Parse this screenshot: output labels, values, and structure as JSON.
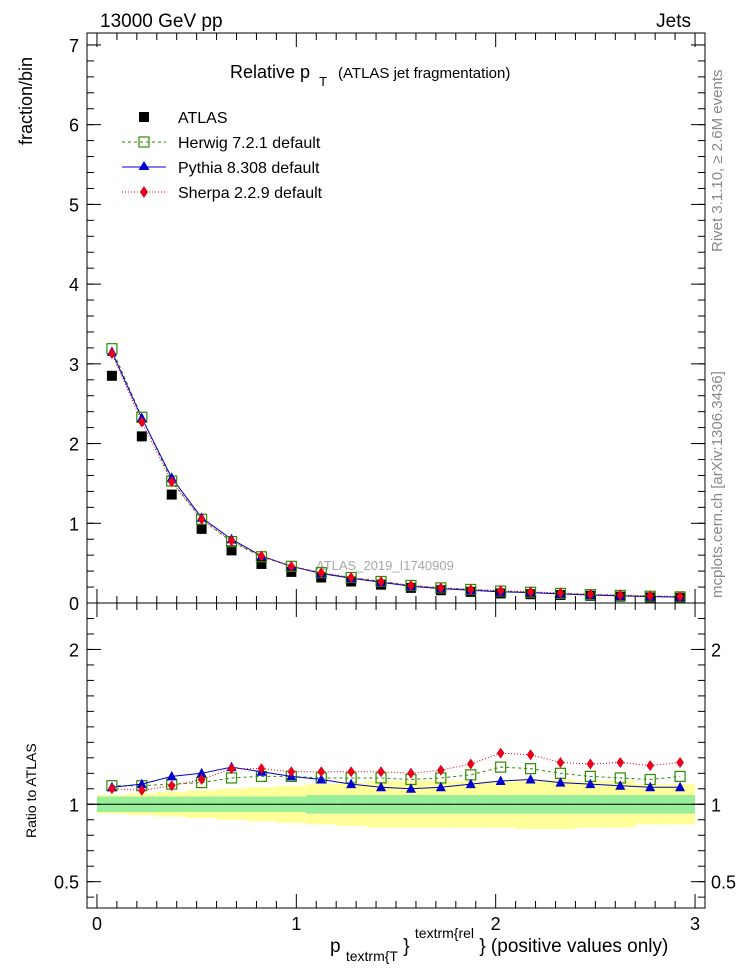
{
  "header": {
    "left": "13000 GeV pp",
    "right": "Jets"
  },
  "side_labels": {
    "rivet": "Rivet 3.1.10, ≥ 2.6M events",
    "mcplots": "mcplots.cern.ch [arXiv:1306.3436]"
  },
  "watermark": "ATLAS_2019_I1740909",
  "chart_data": [
    {
      "type": "scatter",
      "title_main": "Relative p",
      "title_sub": "T",
      "title_rest": "(ATLAS jet fragmentation)",
      "ylabel": "fraction/bin",
      "xlim": [
        -0.05,
        3.05
      ],
      "ylim": [
        0,
        7.15
      ],
      "yticks": [
        0,
        1,
        2,
        3,
        4,
        5,
        6,
        7
      ],
      "legend_position": "top-left",
      "x": [
        0.075,
        0.225,
        0.375,
        0.525,
        0.675,
        0.825,
        0.975,
        1.125,
        1.275,
        1.425,
        1.575,
        1.725,
        1.875,
        2.025,
        2.175,
        2.325,
        2.475,
        2.625,
        2.775,
        2.925
      ],
      "series": [
        {
          "name": "ATLAS",
          "color": "#000000",
          "marker": "square",
          "values": [
            2.85,
            2.09,
            1.36,
            0.93,
            0.66,
            0.49,
            0.39,
            0.32,
            0.27,
            0.23,
            0.19,
            0.16,
            0.14,
            0.12,
            0.11,
            0.1,
            0.09,
            0.08,
            0.07,
            0.065
          ]
        },
        {
          "name": "Herwig 7.2.1 default",
          "color": "#2e8b00",
          "marker": "open-square",
          "dash": "3,3",
          "values": [
            3.19,
            2.33,
            1.53,
            1.05,
            0.77,
            0.58,
            0.46,
            0.38,
            0.32,
            0.27,
            0.22,
            0.19,
            0.17,
            0.15,
            0.135,
            0.12,
            0.105,
            0.095,
            0.085,
            0.077
          ]
        },
        {
          "name": "Pythia 8.308 default",
          "color": "#0000cc",
          "marker": "triangle",
          "dash": "",
          "values": [
            3.15,
            2.32,
            1.57,
            1.07,
            0.8,
            0.59,
            0.46,
            0.37,
            0.31,
            0.26,
            0.21,
            0.18,
            0.16,
            0.14,
            0.13,
            0.115,
            0.1,
            0.09,
            0.08,
            0.073
          ]
        },
        {
          "name": "Sherpa 2.2.9 default",
          "color": "#e8001a",
          "marker": "diamond",
          "dash": "1,2",
          "values": [
            3.13,
            2.27,
            1.52,
            1.05,
            0.78,
            0.59,
            0.46,
            0.38,
            0.32,
            0.27,
            0.22,
            0.19,
            0.17,
            0.155,
            0.14,
            0.125,
            0.11,
            0.1,
            0.09,
            0.082
          ]
        }
      ]
    },
    {
      "type": "scatter",
      "ylabel": "Ratio to ATLAS",
      "xlabel": "p",
      "xlabel_sub": "textrm{T",
      "xlabel_brace": "}",
      "xlabel_sup": "textrm{rel",
      "xlabel_rest": "} (positive values only)",
      "xlim": [
        -0.05,
        3.05
      ],
      "ylim": [
        0.33,
        2.3
      ],
      "xticks": [
        0,
        1,
        2,
        3
      ],
      "yticks": [
        0.5,
        1,
        2
      ],
      "band_inner": [
        0.05,
        0.05,
        0.05,
        0.05,
        0.05,
        0.05,
        0.05,
        0.06,
        0.06,
        0.06,
        0.06,
        0.06,
        0.06,
        0.06,
        0.06,
        0.06,
        0.06,
        0.06,
        0.06,
        0.06
      ],
      "band_outer": [
        0.06,
        0.07,
        0.08,
        0.09,
        0.1,
        0.11,
        0.12,
        0.13,
        0.14,
        0.15,
        0.15,
        0.15,
        0.15,
        0.15,
        0.16,
        0.16,
        0.15,
        0.15,
        0.13,
        0.13
      ],
      "series": [
        {
          "name": "Herwig 7.2.1 default",
          "color": "#2e8b00",
          "values": [
            1.12,
            1.12,
            1.13,
            1.14,
            1.17,
            1.18,
            1.18,
            1.17,
            1.17,
            1.17,
            1.16,
            1.17,
            1.19,
            1.24,
            1.23,
            1.2,
            1.18,
            1.17,
            1.16,
            1.18
          ]
        },
        {
          "name": "Pythia 8.308 default",
          "color": "#0000cc",
          "values": [
            1.11,
            1.13,
            1.18,
            1.2,
            1.24,
            1.21,
            1.18,
            1.16,
            1.13,
            1.11,
            1.1,
            1.11,
            1.13,
            1.15,
            1.16,
            1.14,
            1.13,
            1.12,
            1.11,
            1.11
          ]
        },
        {
          "name": "Sherpa 2.2.9 default",
          "color": "#e8001a",
          "values": [
            1.1,
            1.09,
            1.12,
            1.16,
            1.23,
            1.23,
            1.21,
            1.21,
            1.21,
            1.21,
            1.2,
            1.22,
            1.26,
            1.33,
            1.32,
            1.27,
            1.26,
            1.27,
            1.25,
            1.27
          ]
        }
      ]
    }
  ]
}
